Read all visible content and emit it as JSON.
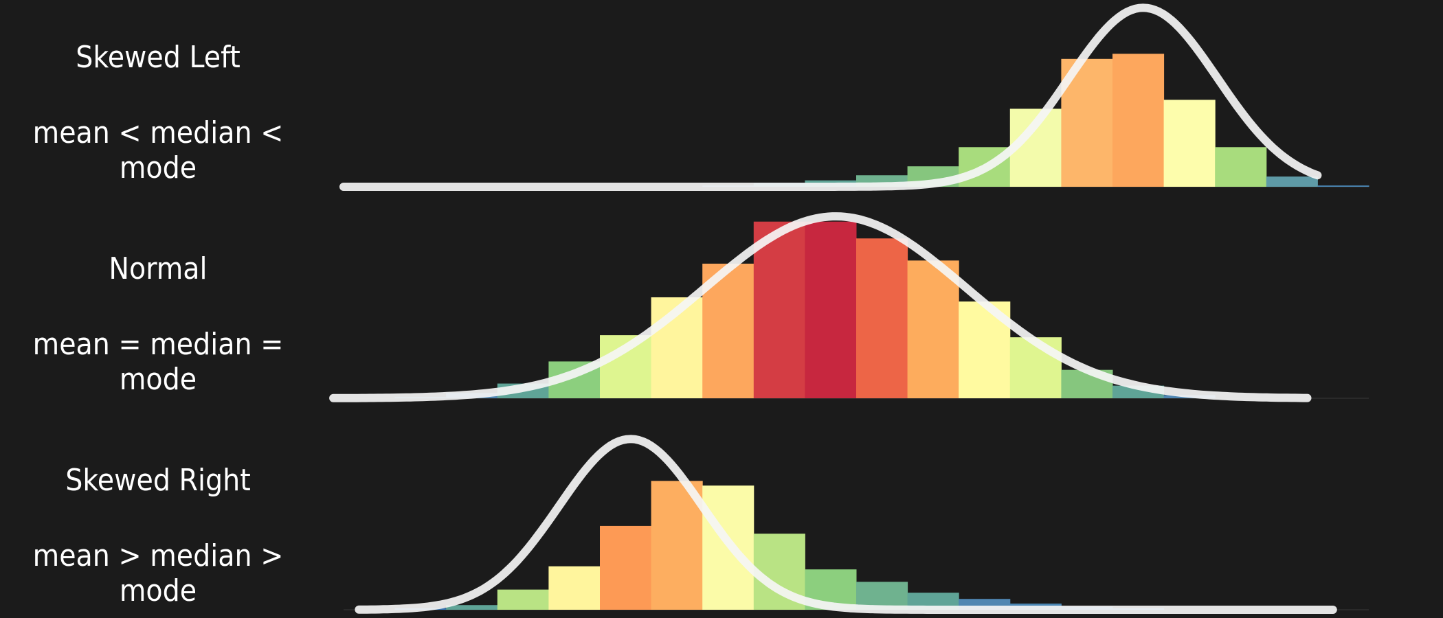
{
  "chart_data": [
    {
      "type": "bar",
      "title": "Skewed Left",
      "subtitle": "mean < median < mode",
      "bins": [
        -1,
        0,
        1,
        2,
        3,
        4,
        5,
        6,
        7,
        8,
        9,
        10,
        11,
        12,
        13,
        14,
        15,
        16,
        17,
        18
      ],
      "values": [
        0,
        0,
        0,
        0,
        0,
        0,
        0,
        0.01,
        0.03,
        0.05,
        0.09,
        0.16,
        0.31,
        0.61,
        1.0,
        1.04,
        0.68,
        0.31,
        0.08,
        0.01
      ],
      "colors": [
        "#3b7ab8",
        "#3b7ab8",
        "#3b7ab8",
        "#3b7ab8",
        "#3b7ab8",
        "#3b7ab8",
        "#3b7ab8",
        "#4a86b4",
        "#4f9aa3",
        "#5fa497",
        "#6fb28f",
        "#86c67e",
        "#a8dc7d",
        "#f3fbab",
        "#fdb66a",
        "#fda75d",
        "#fdfdac",
        "#a8dc7d",
        "#5e9aa6",
        "#4a86b4"
      ],
      "curve": {
        "type": "gaussian",
        "mean": 14.6,
        "sd": 1.45,
        "peak": 1.4,
        "xmin": -1,
        "xmax": 18
      },
      "ylim": [
        0,
        1.45
      ]
    },
    {
      "type": "bar",
      "title": "Normal",
      "subtitle": "mean = median = mode",
      "bins": [
        -1,
        0,
        1,
        2,
        3,
        4,
        5,
        6,
        7,
        8,
        9,
        10,
        11,
        12,
        13,
        14,
        15,
        16,
        17,
        18
      ],
      "values": [
        0,
        0.01,
        0.05,
        0.14,
        0.35,
        0.6,
        0.96,
        1.28,
        1.68,
        1.68,
        1.52,
        1.31,
        0.92,
        0.58,
        0.27,
        0.12,
        0.03,
        0,
        0,
        0
      ],
      "colors": [
        "#3b7ab8",
        "#3b7ab8",
        "#4f86b2",
        "#5fa497",
        "#8ccf7e",
        "#def590",
        "#fff59d",
        "#fda75d",
        "#d43d44",
        "#c7273f",
        "#ed6547",
        "#fdac5d",
        "#fffaa0",
        "#dff590",
        "#86c67e",
        "#5fa497",
        "#4f86b2",
        "#3b7ab8",
        "#3b7ab8",
        "#3b7ab8"
      ],
      "curve": {
        "type": "gaussian",
        "mean": 8.6,
        "sd": 2.55,
        "peak": 1.73,
        "xmin": -1.2,
        "xmax": 17.8
      },
      "ylim": [
        0,
        1.75
      ]
    },
    {
      "type": "bar",
      "title": "Skewed Right",
      "subtitle": "mean > median > mode",
      "bins": [
        -1,
        0,
        1,
        2,
        3,
        4,
        5,
        6,
        7,
        8,
        9,
        10,
        11,
        12,
        13,
        14,
        15,
        16,
        17,
        18
      ],
      "values": [
        0,
        0.01,
        0.03,
        0.13,
        0.28,
        0.54,
        0.83,
        0.8,
        0.49,
        0.26,
        0.18,
        0.11,
        0.07,
        0.04,
        0.02,
        0.01,
        0,
        0,
        0,
        0
      ],
      "colors": [
        "#3b7ab8",
        "#3b7ab8",
        "#5fa497",
        "#b9e384",
        "#fff59d",
        "#fd9a55",
        "#fdae60",
        "#fbfba8",
        "#b9e384",
        "#8ccf7e",
        "#6fb28f",
        "#5fa497",
        "#4f86b2",
        "#4a86b4",
        "#3b7ab8",
        "#3b7ab8",
        "#3b7ab8",
        "#3b7ab8",
        "#3b7ab8",
        "#3b7ab8"
      ],
      "curve": {
        "type": "gaussian",
        "mean": 4.6,
        "sd": 1.4,
        "peak": 1.1,
        "xmin": -0.7,
        "xmax": 18.3
      },
      "ylim": [
        0,
        1.15
      ]
    }
  ]
}
